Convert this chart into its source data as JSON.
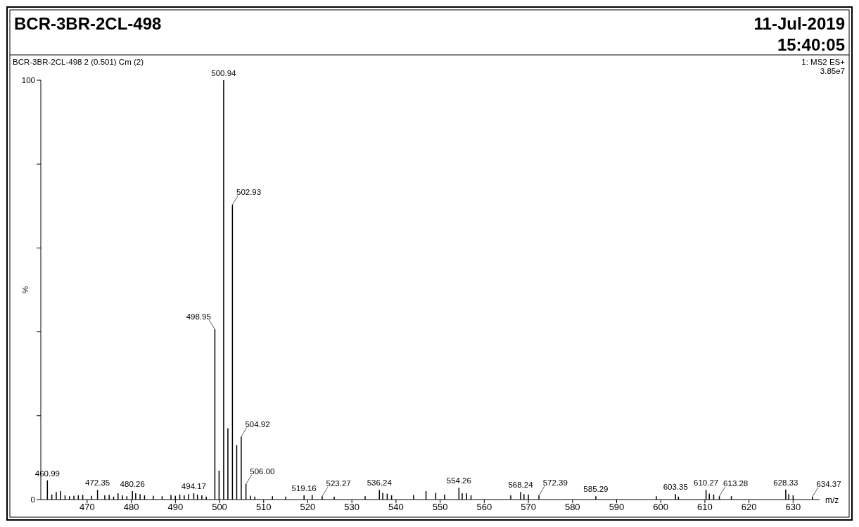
{
  "chart_data": {
    "type": "bar",
    "title": "BCR-3BR-2CL-498",
    "subtitle": "BCR-3BR-2CL-498 2 (0.501) Cm (2)",
    "xlabel": "m/z",
    "ylabel": "%",
    "color": "#000000",
    "x": [
      460.99,
      462,
      463,
      464,
      465,
      466,
      467,
      468,
      469,
      471,
      472.35,
      474,
      475,
      476,
      477,
      478,
      479,
      480.26,
      481,
      482,
      483,
      485,
      487,
      489,
      490,
      491,
      492,
      493,
      494.17,
      495,
      496,
      497,
      498.95,
      499.9,
      500.94,
      501.9,
      502.93,
      503.9,
      504.92,
      506.0,
      507,
      508,
      512,
      515,
      519.16,
      521,
      523.27,
      526,
      533,
      536.24,
      537,
      538,
      539,
      544,
      546.8,
      549,
      551,
      554.26,
      555,
      556,
      557,
      566,
      568.24,
      569,
      570,
      572.39,
      585.29,
      599,
      603.35,
      604,
      610.27,
      611,
      612,
      613.28,
      616,
      628.33,
      629,
      630,
      634.37
    ],
    "values": [
      4.6,
      1.2,
      1.8,
      2.0,
      1.0,
      0.8,
      0.9,
      1.0,
      1.1,
      0.9,
      2.3,
      1.0,
      1.1,
      0.7,
      1.5,
      1.0,
      0.8,
      2.0,
      1.5,
      1.3,
      1.0,
      0.9,
      0.8,
      1.1,
      0.9,
      1.2,
      1.0,
      1.3,
      1.5,
      1.2,
      1.0,
      0.7,
      40.6,
      6.9,
      100,
      17.0,
      70.3,
      13.0,
      15.0,
      3.7,
      0.9,
      0.7,
      0.8,
      0.7,
      1.0,
      1.1,
      0.8,
      0.7,
      0.8,
      2.3,
      1.6,
      1.4,
      1.0,
      1.1,
      2.0,
      1.6,
      1.2,
      2.8,
      1.5,
      1.5,
      1.0,
      1.0,
      1.8,
      1.3,
      1.2,
      1.0,
      0.8,
      0.8,
      1.3,
      0.7,
      2.3,
      1.4,
      1.2,
      0.8,
      0.8,
      2.4,
      1.3,
      1.0,
      0.7
    ],
    "xlim": [
      459.5,
      636
    ],
    "xticks": [
      470,
      480,
      490,
      500,
      510,
      520,
      530,
      540,
      550,
      560,
      570,
      580,
      590,
      600,
      610,
      620,
      630
    ],
    "ylim": [
      0,
      100
    ],
    "yticks": [
      0,
      {
        "value": 20,
        "label": null
      },
      {
        "value": 40,
        "label": null
      },
      {
        "value": 60,
        "label": null
      },
      {
        "value": 80,
        "label": null
      },
      100
    ],
    "grid": false,
    "annotations": [
      "11-Jul-2019",
      "15:40:05",
      "1: MS2 ES+",
      "3.85e7",
      {
        "text": "460.99",
        "x": 460.99,
        "y": 4.6
      },
      {
        "text": "472.35",
        "x": 472.35,
        "y": 2.3
      },
      {
        "text": "480.26",
        "x": 480.26,
        "y": 2.0
      },
      {
        "text": "494.17",
        "x": 494.17,
        "y": 1.5
      },
      {
        "text": "498.95",
        "x": 498.95,
        "y": 40.6
      },
      {
        "text": "500.94",
        "x": 500.94,
        "y": 100
      },
      {
        "text": "502.93",
        "x": 502.93,
        "y": 70.3
      },
      {
        "text": "504.92",
        "x": 504.92,
        "y": 15.0
      },
      {
        "text": "506.00",
        "x": 506.0,
        "y": 3.7
      },
      {
        "text": "519.16",
        "x": 519.16,
        "y": 1.0
      },
      {
        "text": "523.27",
        "x": 523.27,
        "y": 0.8
      },
      {
        "text": "536.24",
        "x": 536.24,
        "y": 2.3
      },
      {
        "text": "554.26",
        "x": 554.26,
        "y": 2.8
      },
      {
        "text": "568.24",
        "x": 568.24,
        "y": 1.8
      },
      {
        "text": "572.39",
        "x": 572.39,
        "y": 1.0
      },
      {
        "text": "585.29",
        "x": 585.29,
        "y": 0.8
      },
      {
        "text": "603.35",
        "x": 603.35,
        "y": 1.3
      },
      {
        "text": "610.27",
        "x": 610.27,
        "y": 2.3
      },
      {
        "text": "613.28",
        "x": 613.28,
        "y": 0.8
      },
      {
        "text": "628.33",
        "x": 628.33,
        "y": 2.4
      },
      {
        "text": "634.37",
        "x": 634.37,
        "y": 0.7
      }
    ]
  }
}
